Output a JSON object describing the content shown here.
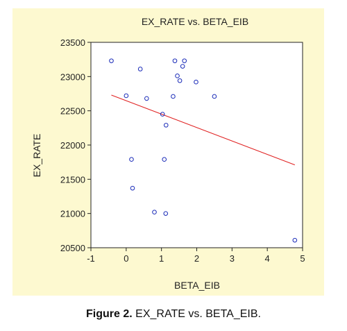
{
  "chart_data": {
    "type": "scatter",
    "title": "EX_RATE vs. BETA_EIB",
    "xlabel": "BETA_EIB",
    "ylabel": "EX_RATE",
    "xlim": [
      -1,
      5
    ],
    "ylim": [
      20500,
      23500
    ],
    "xticks": [
      -1,
      0,
      1,
      2,
      3,
      4,
      5
    ],
    "xtick_labels": [
      "-1",
      "0",
      "1",
      "2",
      "3",
      "4",
      "5"
    ],
    "yticks": [
      20500,
      21000,
      21500,
      22000,
      22500,
      23000,
      23500
    ],
    "ytick_labels": [
      "20500",
      "21000",
      "21500",
      "22000",
      "22500",
      "23000",
      "23500"
    ],
    "grid": false,
    "marker_color": "#1a2bb8",
    "fit_line_color": "#e02020",
    "points": [
      {
        "x": -0.42,
        "y": 23230
      },
      {
        "x": 0.4,
        "y": 23110
      },
      {
        "x": 1.38,
        "y": 23230
      },
      {
        "x": 1.65,
        "y": 23230
      },
      {
        "x": 1.45,
        "y": 23010
      },
      {
        "x": 1.6,
        "y": 23150
      },
      {
        "x": 1.52,
        "y": 22940
      },
      {
        "x": 1.98,
        "y": 22920
      },
      {
        "x": 0.0,
        "y": 22720
      },
      {
        "x": 0.58,
        "y": 22680
      },
      {
        "x": 1.33,
        "y": 22710
      },
      {
        "x": 2.5,
        "y": 22710
      },
      {
        "x": 1.03,
        "y": 22450
      },
      {
        "x": 1.13,
        "y": 22290
      },
      {
        "x": 0.15,
        "y": 21790
      },
      {
        "x": 1.08,
        "y": 21790
      },
      {
        "x": 0.18,
        "y": 21370
      },
      {
        "x": 0.8,
        "y": 21020
      },
      {
        "x": 1.12,
        "y": 21000
      },
      {
        "x": 4.78,
        "y": 20610
      }
    ],
    "fit_line": {
      "x": [
        -0.42,
        4.78
      ],
      "y": [
        22730,
        21710
      ]
    }
  },
  "caption": {
    "label": "Figure 2.",
    "text": " EX_RATE vs. BETA_EIB."
  }
}
